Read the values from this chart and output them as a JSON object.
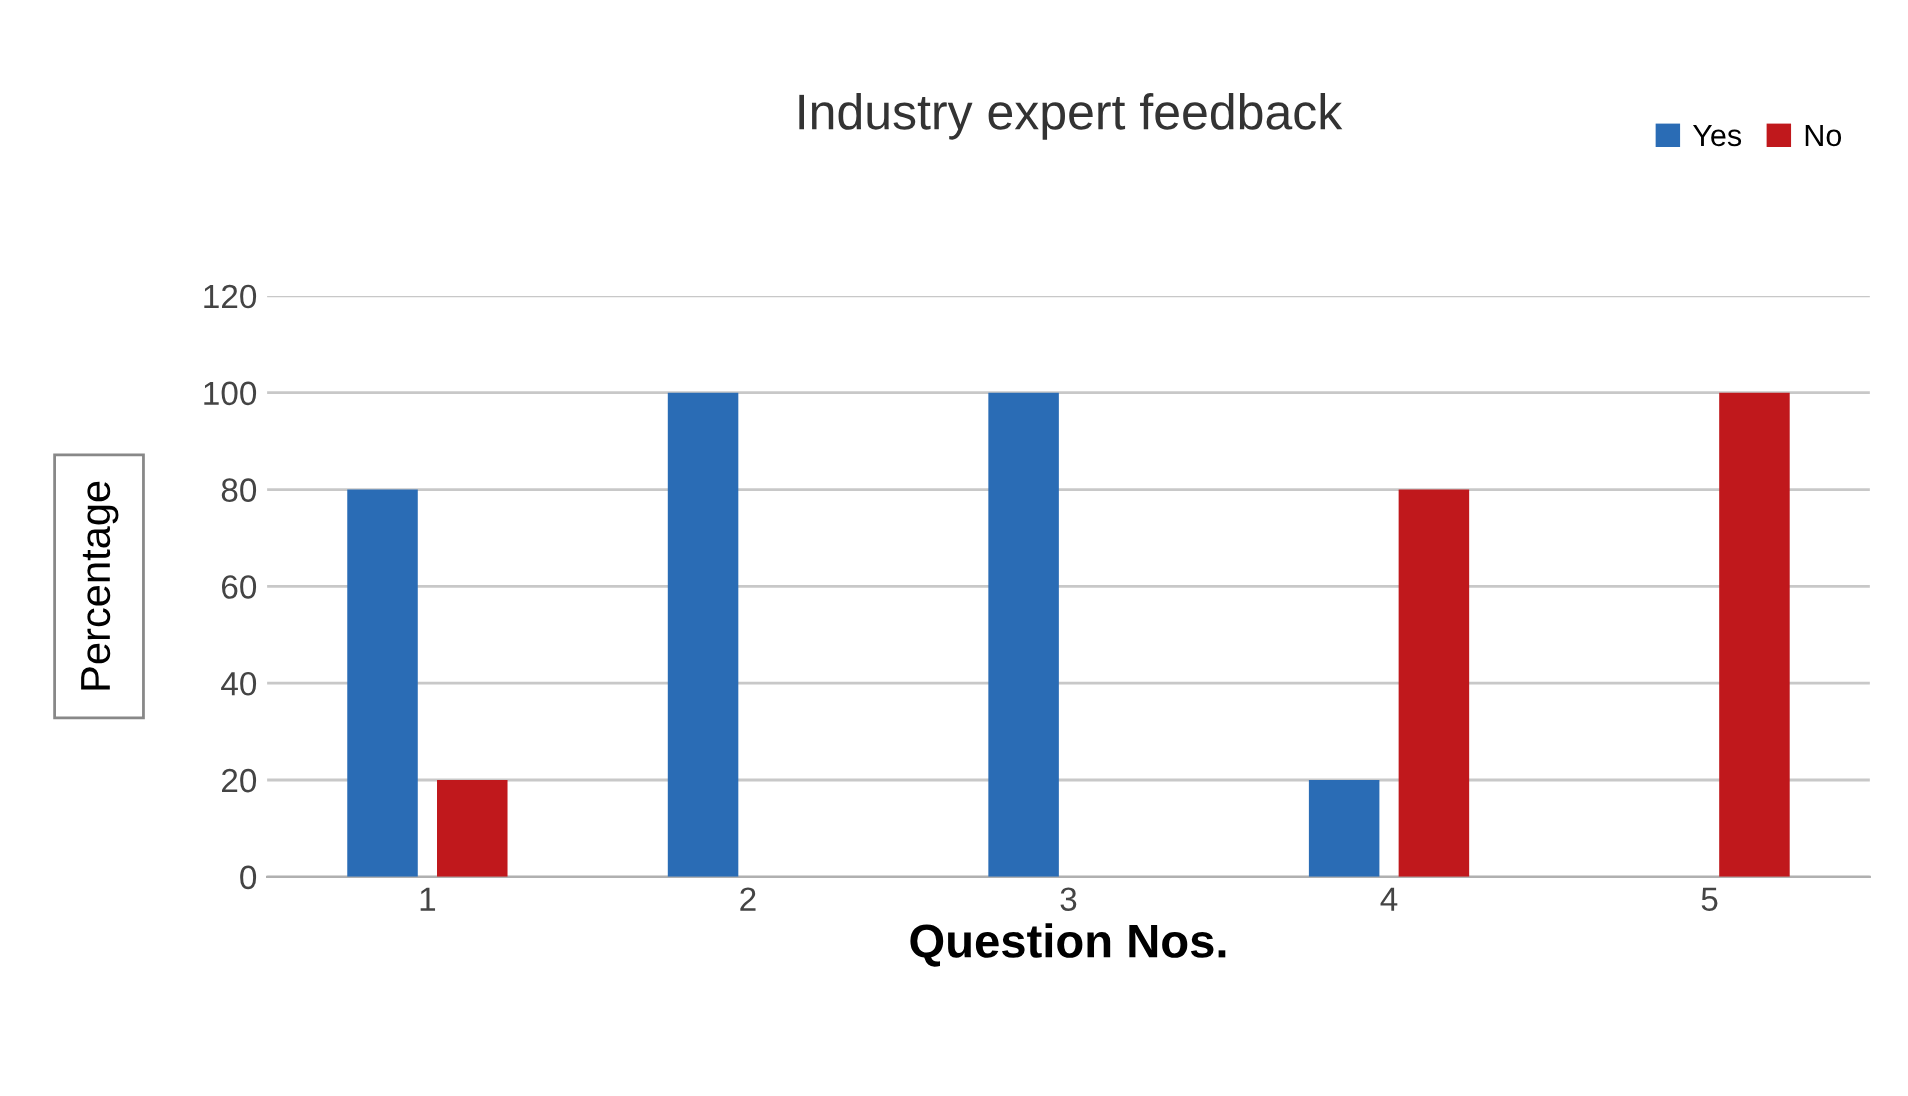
{
  "chart_data": {
    "type": "bar",
    "title": "Industry expert feedback",
    "xlabel": "Question Nos.",
    "ylabel": "Percentage",
    "categories": [
      "1",
      "2",
      "3",
      "4",
      "5"
    ],
    "series": [
      {
        "name": "Yes",
        "color": "#2a6cb5",
        "values": [
          80,
          100,
          100,
          20,
          0
        ]
      },
      {
        "name": "No",
        "color": "#c0181c",
        "values": [
          20,
          0,
          0,
          80,
          100
        ]
      }
    ],
    "ylim": [
      0,
      120
    ],
    "yticks": [
      0,
      20,
      40,
      60,
      80,
      100,
      120
    ],
    "grid": "y",
    "legend": "top right"
  }
}
